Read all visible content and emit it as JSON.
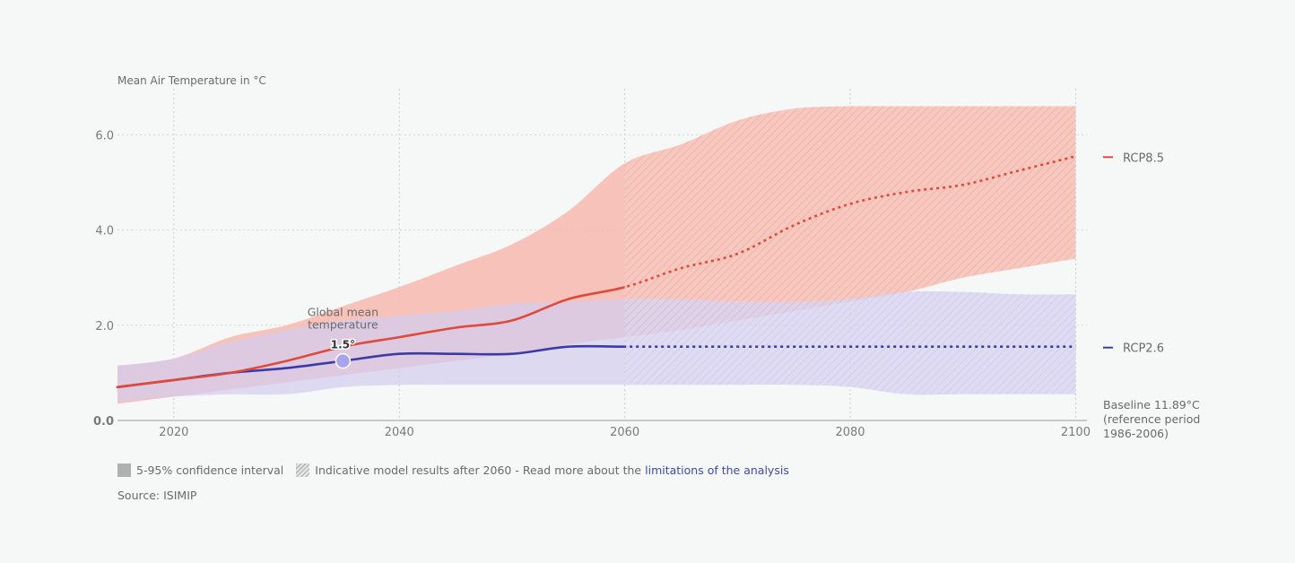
{
  "chart_data": {
    "type": "line",
    "ylabel": "Mean Air Temperature in °C",
    "xlim": [
      2015,
      2102
    ],
    "ylim": [
      0,
      6.8
    ],
    "x_ticks": [
      2020,
      2040,
      2060,
      2080,
      2100
    ],
    "y_ticks": [
      {
        "value": 0,
        "label": "0.0"
      },
      {
        "value": 2,
        "label": "2.0"
      },
      {
        "value": 4,
        "label": "4.0"
      },
      {
        "value": 6,
        "label": "6.0"
      }
    ],
    "grid": true,
    "series": [
      {
        "name": "RCP8.5",
        "color": "#e04a3a",
        "band_color": "#f7b8ae",
        "x": [
          2015,
          2020,
          2025,
          2030,
          2035,
          2040,
          2045,
          2050,
          2055,
          2060,
          2065,
          2070,
          2075,
          2080,
          2085,
          2090,
          2095,
          2100
        ],
        "y": [
          0.7,
          0.85,
          1.0,
          1.25,
          1.55,
          1.75,
          1.95,
          2.1,
          2.55,
          2.8,
          3.2,
          3.5,
          4.1,
          4.55,
          4.8,
          4.95,
          5.25,
          5.55
        ],
        "lower": [
          0.35,
          0.5,
          0.65,
          0.8,
          0.95,
          1.1,
          1.25,
          1.4,
          1.6,
          1.75,
          1.9,
          2.1,
          2.3,
          2.5,
          2.7,
          3.0,
          3.2,
          3.4
        ],
        "upper": [
          1.15,
          1.3,
          1.75,
          2.0,
          2.4,
          2.8,
          3.25,
          3.7,
          4.4,
          5.4,
          5.8,
          6.3,
          6.55,
          6.6,
          6.6,
          6.6,
          6.6,
          6.6
        ]
      },
      {
        "name": "RCP2.6",
        "color": "#3c3aa6",
        "band_color": "#d2cdef",
        "x": [
          2015,
          2020,
          2025,
          2030,
          2035,
          2040,
          2045,
          2050,
          2055,
          2060,
          2065,
          2070,
          2075,
          2080,
          2085,
          2090,
          2095,
          2100
        ],
        "y": [
          0.7,
          0.85,
          1.0,
          1.1,
          1.25,
          1.4,
          1.4,
          1.4,
          1.55,
          1.55,
          1.55,
          1.55,
          1.55,
          1.55,
          1.55,
          1.55,
          1.55,
          1.55
        ],
        "lower": [
          0.4,
          0.5,
          0.55,
          0.55,
          0.7,
          0.75,
          0.75,
          0.75,
          0.75,
          0.75,
          0.75,
          0.75,
          0.75,
          0.7,
          0.55,
          0.55,
          0.55,
          0.55
        ],
        "upper": [
          1.15,
          1.3,
          1.65,
          1.9,
          2.1,
          2.2,
          2.3,
          2.45,
          2.5,
          2.55,
          2.55,
          2.5,
          2.5,
          2.55,
          2.7,
          2.7,
          2.65,
          2.65
        ]
      }
    ],
    "indicative_after": 2060,
    "annotation": {
      "x": 2035,
      "y": 1.25,
      "lines": [
        "Global mean",
        "temperature"
      ],
      "value_label": "1.5°",
      "color": "#a9a3ec"
    },
    "baseline_note": [
      "Baseline 11.89°C",
      "(reference period",
      "1986-2006)"
    ],
    "legend": {
      "confidence": "5-95% confidence interval",
      "indicative": "Indicative model results after 2060 - Read more about the",
      "link": "limitations of the analysis"
    },
    "source": "Source: ISIMIP"
  }
}
